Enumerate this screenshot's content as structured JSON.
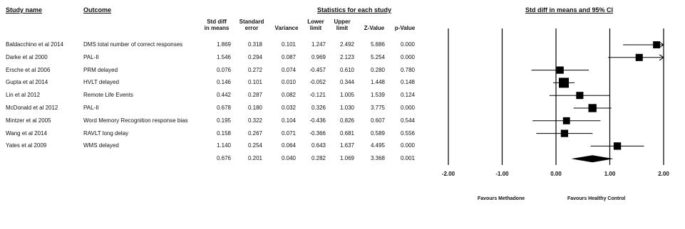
{
  "headers": {
    "study_name": "Study name",
    "outcome": "Outcome",
    "statistics": "Statistics for each study",
    "plot_title": "Std diff in means and 95% CI"
  },
  "columns": {
    "std_diff": [
      "Std diff",
      "in means"
    ],
    "std_error": [
      "Standard",
      "error"
    ],
    "variance": [
      "",
      "Variance"
    ],
    "lower": [
      "Lower",
      "limit"
    ],
    "upper": [
      "Upper",
      "limit"
    ],
    "z": [
      "",
      "Z-Value"
    ],
    "p": [
      "",
      "p-Value"
    ]
  },
  "rows": [
    {
      "study": "Baldacchino et al 2014",
      "outcome": "DMS total number of correct responses",
      "smd": "1.869",
      "se": "0.318",
      "var": "0.101",
      "lower": "1.247",
      "upper": "2.492",
      "z": "5.886",
      "p": "0.000"
    },
    {
      "study": "Darke et al 2000",
      "outcome": "PAL-II",
      "smd": "1.546",
      "se": "0.294",
      "var": "0.087",
      "lower": "0.969",
      "upper": "2.123",
      "z": "5.254",
      "p": "0.000"
    },
    {
      "study": "Ersche et al 2006",
      "outcome": "PRM delayed",
      "smd": "0.076",
      "se": "0.272",
      "var": "0.074",
      "lower": "-0.457",
      "upper": "0.610",
      "z": "0.280",
      "p": "0.780"
    },
    {
      "study": "Gupta et al  2014",
      "outcome": "HVLT delayed",
      "smd": "0.146",
      "se": "0.101",
      "var": "0.010",
      "lower": "-0.052",
      "upper": "0.344",
      "z": "1.448",
      "p": "0.148"
    },
    {
      "study": "Lin et al 2012",
      "outcome": "Remote Life Events",
      "smd": "0.442",
      "se": "0.287",
      "var": "0.082",
      "lower": "-0.121",
      "upper": "1.005",
      "z": "1.539",
      "p": "0.124"
    },
    {
      "study": "McDonald et al 2012",
      "outcome": "PAL-II",
      "smd": "0.678",
      "se": "0.180",
      "var": "0.032",
      "lower": "0.326",
      "upper": "1.030",
      "z": "3.775",
      "p": "0.000"
    },
    {
      "study": "Mintzer et al 2005",
      "outcome": "Word Memory Recognition response bias",
      "smd": "0.195",
      "se": "0.322",
      "var": "0.104",
      "lower": "-0.436",
      "upper": "0.826",
      "z": "0.607",
      "p": "0.544"
    },
    {
      "study": "Wang et al 2014",
      "outcome": "RAVLT long delay",
      "smd": "0.158",
      "se": "0.267",
      "var": "0.071",
      "lower": "-0.366",
      "upper": "0.681",
      "z": "0.589",
      "p": "0.556"
    },
    {
      "study": "Yates et al 2009",
      "outcome": "WMS delayed",
      "smd": "1.140",
      "se": "0.254",
      "var": "0.064",
      "lower": "0.643",
      "upper": "1.637",
      "z": "4.495",
      "p": "0.000"
    }
  ],
  "summary": {
    "smd": "0.676",
    "se": "0.201",
    "var": "0.040",
    "lower": "0.282",
    "upper": "1.069",
    "z": "3.368",
    "p": "0.001"
  },
  "axis": {
    "ticks": [
      "-2.00",
      "-1.00",
      "0.00",
      "1.00",
      "2.00"
    ],
    "favours_left": "Favours Methadone",
    "favours_right": "Favours Healthy Control"
  },
  "chart_data": {
    "type": "forest",
    "title": "Std diff in means and 95% CI",
    "xlim": [
      -2,
      2
    ],
    "tick_values": [
      -2,
      -1,
      0,
      1,
      2
    ],
    "series": [
      {
        "label": "Baldacchino et al 2014",
        "value": 1.869,
        "lower": 1.247,
        "upper": 2.492
      },
      {
        "label": "Darke et al 2000",
        "value": 1.546,
        "lower": 0.969,
        "upper": 2.123
      },
      {
        "label": "Ersche et al 2006",
        "value": 0.076,
        "lower": -0.457,
        "upper": 0.61
      },
      {
        "label": "Gupta et al  2014",
        "value": 0.146,
        "lower": -0.052,
        "upper": 0.344
      },
      {
        "label": "Lin et al 2012",
        "value": 0.442,
        "lower": -0.121,
        "upper": 1.005
      },
      {
        "label": "McDonald et al 2012",
        "value": 0.678,
        "lower": 0.326,
        "upper": 1.03
      },
      {
        "label": "Mintzer et al 2005",
        "value": 0.195,
        "lower": -0.436,
        "upper": 0.826
      },
      {
        "label": "Wang et al 2014",
        "value": 0.158,
        "lower": -0.366,
        "upper": 0.681
      },
      {
        "label": "Yates et al 2009",
        "value": 1.14,
        "lower": 0.643,
        "upper": 1.637
      }
    ],
    "summary": {
      "value": 0.676,
      "lower": 0.282,
      "upper": 1.069
    },
    "weights": [
      0.101,
      0.087,
      0.074,
      0.01,
      0.082,
      0.032,
      0.104,
      0.071,
      0.064
    ]
  }
}
